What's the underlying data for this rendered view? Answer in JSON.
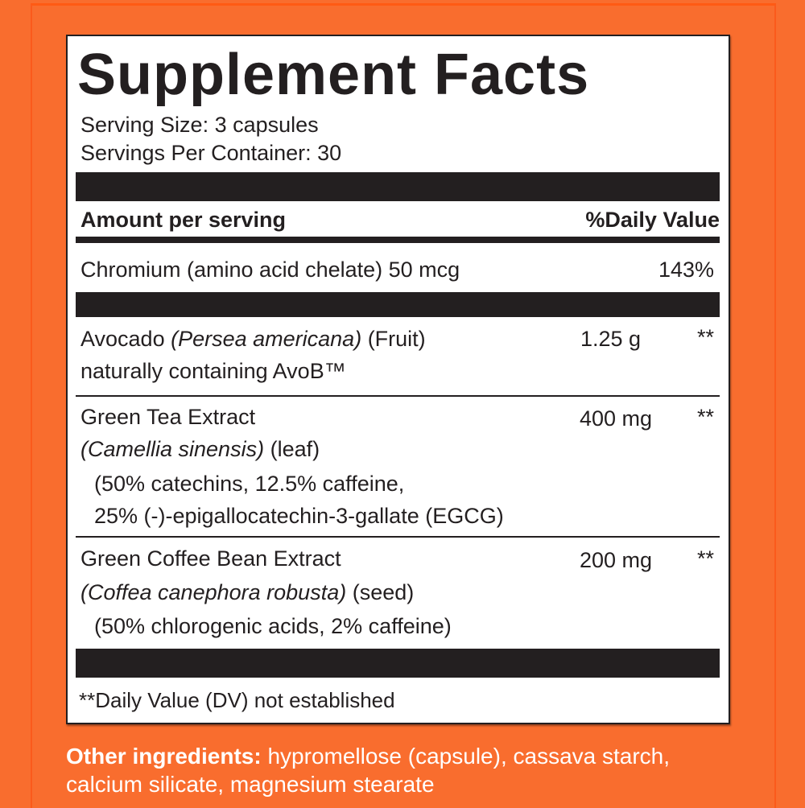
{
  "title": "Supplement Facts",
  "serving_size": "Serving Size: 3 capsules",
  "servings_per_container": "Servings Per Container: 30",
  "header": {
    "amount": "Amount per serving",
    "dv": "%Daily Value"
  },
  "rows": [
    {
      "name": "Chromium (amino acid chelate) 50 mcg",
      "dv": "143%"
    },
    {
      "name_pre": "Avocado ",
      "name_italic": "(Persea americana)",
      "name_post": " (Fruit)",
      "line2": "naturally containing AvoB™",
      "amount": "1.25 g",
      "dv": "**"
    },
    {
      "name": "Green Tea Extract",
      "italic": "(Camellia sinensis)",
      "post": " (leaf)",
      "line3": "(50% catechins, 12.5% caffeine,",
      "line4": "25% (-)-epigallocatechin-3-gallate (EGCG)",
      "amount": "400 mg",
      "dv": "**"
    },
    {
      "name": "Green Coffee Bean Extract",
      "italic": "(Coffea canephora robusta)",
      "post": " (seed)",
      "line3": "(50% chlorogenic acids, 2% caffeine)",
      "amount": "200 mg",
      "dv": "**"
    }
  ],
  "footnote": "**Daily Value (DV) not established",
  "other": {
    "label": "Other ingredients:",
    "text": " hypromellose (capsule), cassava starch, calcium silicate, magnesium stearate"
  },
  "colors": {
    "background": "#f96d2e",
    "ink": "#231f20",
    "panel": "#ffffff"
  }
}
